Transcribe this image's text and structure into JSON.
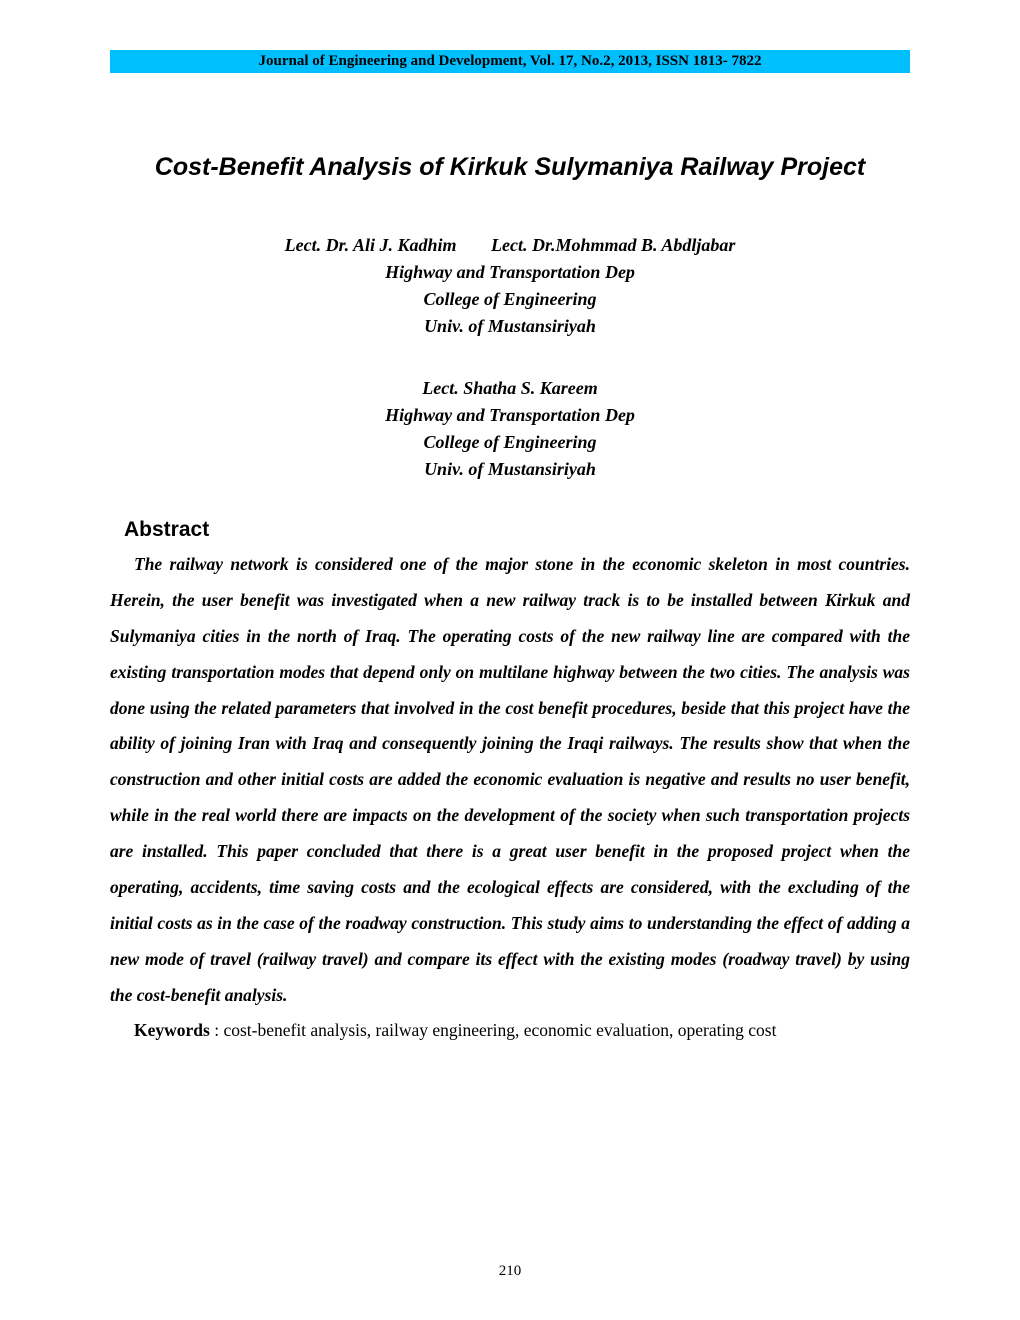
{
  "journal_header": "Journal of Engineering and Development, Vol. 17, No.2,  2013, ISSN 1813- 7822",
  "title": "Cost-Benefit Analysis of Kirkuk Sulymaniya Railway Project",
  "authors_block1": {
    "author1": "Lect. Dr. Ali J. Kadhim",
    "author2": "Lect. Dr.Mohmmad B. Abdljabar",
    "dept": "Highway and Transportation Dep",
    "college": "College of Engineering",
    "univ": "Univ. of Mustansiriyah"
  },
  "authors_block2": {
    "author": "Lect. Shatha S. Kareem",
    "dept": "Highway and Transportation Dep",
    "college": "College of Engineering",
    "univ": "Univ. of Mustansiriyah"
  },
  "abstract_heading": "Abstract",
  "abstract_text": "The railway network is considered one of the major stone in the economic skeleton in most countries. Herein, the user benefit was investigated when a new railway track is to be installed between Kirkuk and Sulymaniya cities in the north of Iraq. The operating costs of the new railway line are compared with the existing transportation modes that depend only on multilane highway between the two cities. The analysis was done using the related parameters that involved in the cost benefit procedures, beside that this project have the ability of  joining Iran with Iraq and consequently joining the Iraqi railways. The results show that when the construction and other initial costs are added the economic evaluation is negative and results no user benefit, while in the real world there are impacts on the development of the society when such transportation projects are installed. This paper concluded that there is a great user benefit in the proposed project when the operating, accidents, time saving costs and the ecological effects are considered, with the excluding of the initial costs as in the case of the roadway construction. This study aims to understanding the effect of adding a new mode of travel (railway travel) and compare its effect with the existing modes (roadway travel) by using the cost-benefit analysis.",
  "keywords_label": "Keywords",
  "keywords_text": " : cost-benefit analysis, railway engineering, economic evaluation, operating cost",
  "page_number": "210",
  "colors": {
    "header_bg": "#00bfff",
    "text": "#000000",
    "page_bg": "#ffffff"
  }
}
